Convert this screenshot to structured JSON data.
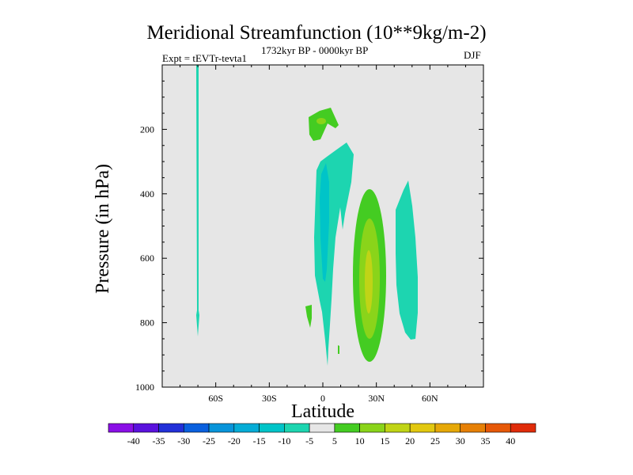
{
  "chart_data": {
    "type": "contour",
    "title": "Meridional Streamfunction (10**9kg/m-2)",
    "left_string": "Expt = tEVTr-tevta1",
    "center_string": "1732kyr BP - 0000kyr BP",
    "right_string": "DJF",
    "xlabel": "Latitude",
    "ylabel": "Pressure (in hPa)",
    "xlim": [
      -90,
      90
    ],
    "ylim": [
      1000,
      0
    ],
    "x_ticks": [
      {
        "value": -60,
        "label": "60S"
      },
      {
        "value": -30,
        "label": "30S"
      },
      {
        "value": 0,
        "label": "0"
      },
      {
        "value": 30,
        "label": "30N"
      },
      {
        "value": 60,
        "label": "60N"
      }
    ],
    "y_ticks": [
      {
        "value": 200,
        "label": "200"
      },
      {
        "value": 400,
        "label": "400"
      },
      {
        "value": 600,
        "label": "600"
      },
      {
        "value": 800,
        "label": "800"
      },
      {
        "value": 1000,
        "label": "1000"
      }
    ],
    "background_color": "#e6e6e6",
    "contour_levels": [
      -40,
      -35,
      -30,
      -25,
      -20,
      -15,
      -10,
      -5,
      5,
      10,
      15,
      20,
      25,
      30,
      35,
      40
    ],
    "colorbar_colors": [
      "#8a0fe6",
      "#5a12dd",
      "#2230d8",
      "#0a60de",
      "#0894da",
      "#05acd6",
      "#00c4c8",
      "#1dd5b0",
      "#e6e6e6",
      "#44cc22",
      "#8ad41a",
      "#c0d416",
      "#e2c810",
      "#e6a808",
      "#e68006",
      "#e65808",
      "#e02c0a"
    ],
    "features": [
      {
        "name": "narrow-negative-band-70s",
        "lat": -70,
        "lat_halfwidth": 0.8,
        "p_top": 0,
        "p_bottom": 840,
        "value_range": [
          -10,
          -5
        ]
      },
      {
        "name": "upper-positive-cell-eq",
        "lat": 0,
        "p_top": 160,
        "p_bottom": 250,
        "value_range": [
          5,
          15
        ]
      },
      {
        "name": "negative-cell-eq",
        "lat": 0,
        "p_top": 280,
        "p_bottom": 940,
        "value_range": [
          -15,
          -5
        ]
      },
      {
        "name": "positive-cell-25n",
        "lat": 26,
        "p_top": 400,
        "p_bottom": 920,
        "value_range": [
          5,
          15
        ]
      },
      {
        "name": "negative-cell-48n",
        "lat": 48,
        "p_top": 360,
        "p_bottom": 850,
        "value_range": [
          -10,
          -5
        ]
      },
      {
        "name": "small-positive-patch-10s",
        "lat": -8,
        "p_top": 740,
        "p_bottom": 810,
        "value_range": [
          5,
          10
        ]
      }
    ]
  }
}
